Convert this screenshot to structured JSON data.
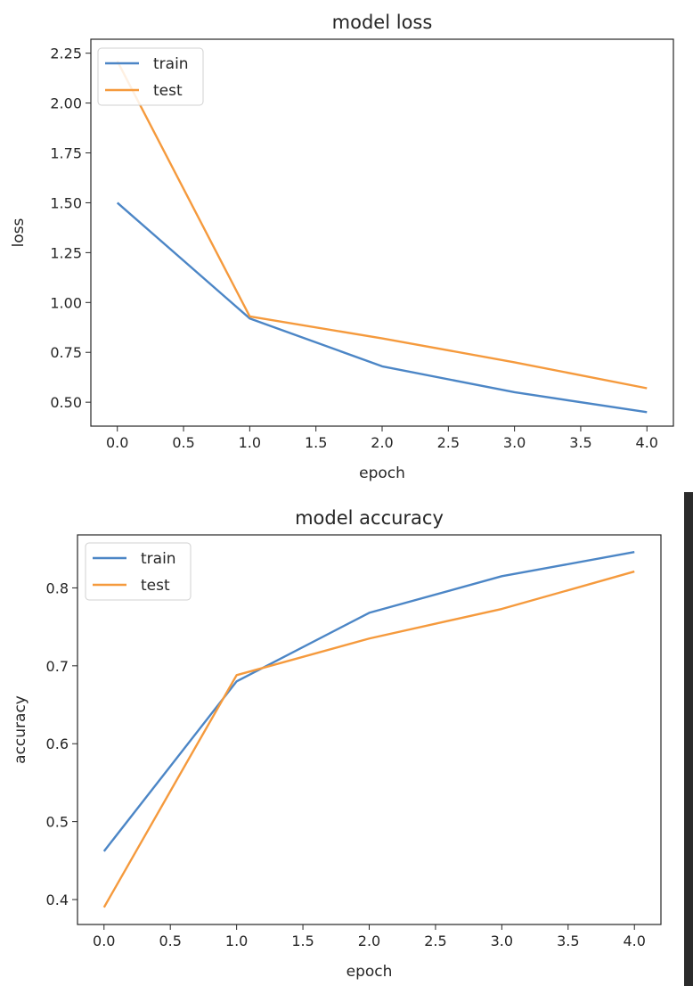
{
  "colors": {
    "train": "#4c86c6",
    "test": "#f59a3d",
    "axes": "#262626",
    "scrollbar": "#2b2b2b"
  },
  "chart_data": [
    {
      "type": "line",
      "title": "model loss",
      "xlabel": "epoch",
      "ylabel": "loss",
      "x": [
        0,
        1,
        2,
        3,
        4
      ],
      "series": [
        {
          "name": "train",
          "values": [
            1.5,
            0.92,
            0.68,
            0.55,
            0.45
          ]
        },
        {
          "name": "test",
          "values": [
            2.21,
            0.93,
            0.82,
            0.7,
            0.57
          ]
        }
      ],
      "xticks": [
        "0.0",
        "0.5",
        "1.0",
        "1.5",
        "2.0",
        "2.5",
        "3.0",
        "3.5",
        "4.0"
      ],
      "yticks": [
        "0.50",
        "0.75",
        "1.00",
        "1.25",
        "1.50",
        "1.75",
        "2.00",
        "2.25"
      ],
      "xlim": [
        -0.2,
        4.2
      ],
      "ylim": [
        0.38,
        2.32
      ],
      "legend": "upper-left",
      "grid": false
    },
    {
      "type": "line",
      "title": "model accuracy",
      "xlabel": "epoch",
      "ylabel": "accuracy",
      "x": [
        0,
        1,
        2,
        3,
        4
      ],
      "series": [
        {
          "name": "train",
          "values": [
            0.462,
            0.68,
            0.768,
            0.815,
            0.846
          ]
        },
        {
          "name": "test",
          "values": [
            0.39,
            0.688,
            0.735,
            0.773,
            0.821
          ]
        }
      ],
      "xticks": [
        "0.0",
        "0.5",
        "1.0",
        "1.5",
        "2.0",
        "2.5",
        "3.0",
        "3.5",
        "4.0"
      ],
      "yticks": [
        "0.4",
        "0.5",
        "0.6",
        "0.7",
        "0.8"
      ],
      "xlim": [
        -0.2,
        4.2
      ],
      "ylim": [
        0.368,
        0.868
      ],
      "legend": "upper-left",
      "grid": false
    }
  ]
}
